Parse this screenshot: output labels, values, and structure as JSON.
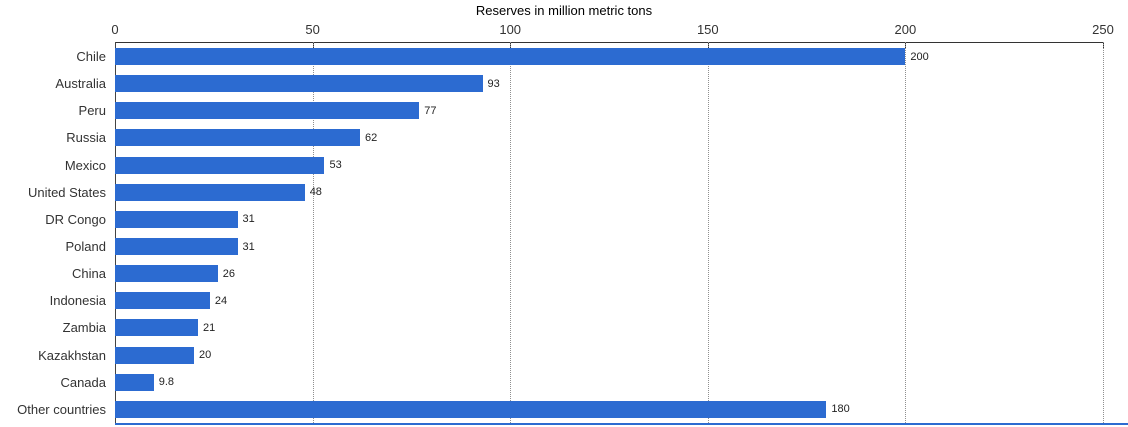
{
  "chart_data": {
    "type": "bar",
    "orientation": "horizontal",
    "title": "Reserves in million metric tons",
    "categories": [
      "Chile",
      "Australia",
      "Peru",
      "Russia",
      "Mexico",
      "United States",
      "DR Congo",
      "Poland",
      "China",
      "Indonesia",
      "Zambia",
      "Kazakhstan",
      "Canada",
      "Other countries"
    ],
    "values": [
      200,
      93,
      77,
      62,
      53,
      48,
      31,
      31,
      26,
      24,
      21,
      20,
      9.8,
      180
    ],
    "value_labels": [
      "200",
      "93",
      "77",
      "62",
      "53",
      "48",
      "31",
      "31",
      "26",
      "24",
      "21",
      "20",
      "9.8",
      "180"
    ],
    "xlabel": "Reserves in million metric tons",
    "ylabel": "",
    "xlim": [
      0,
      250
    ],
    "x_ticks": [
      0,
      50,
      100,
      150,
      200,
      250
    ],
    "axis_position": "top",
    "grid": "vertical-dotted",
    "legend": "none",
    "bar_color": "#2c6bd1",
    "axis_color": "#333333",
    "gridline_color": "#8f8f8f"
  }
}
